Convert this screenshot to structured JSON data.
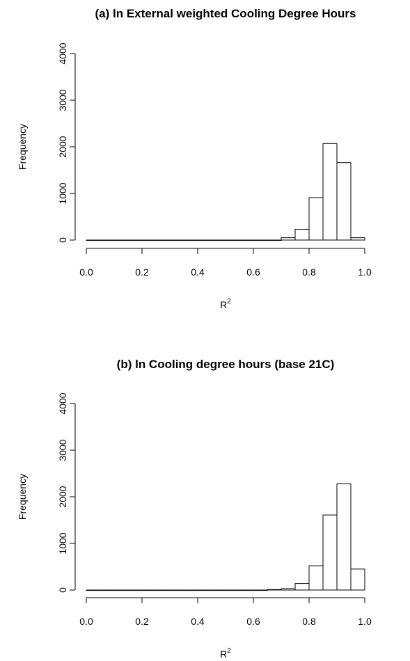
{
  "chart_data": [
    {
      "type": "bar",
      "title": "(a) ln External weighted Cooling Degree Hours",
      "xlabel": "R",
      "xlabel_sup": "2",
      "ylabel": "Frequency",
      "xlim": [
        0.0,
        1.0
      ],
      "ylim": [
        0,
        4000
      ],
      "x_ticks": [
        "0.0",
        "0.2",
        "0.4",
        "0.6",
        "0.8",
        "1.0"
      ],
      "y_ticks": [
        "0",
        "1000",
        "2000",
        "3000",
        "4000"
      ],
      "bin_width": 0.05,
      "bin_starts": [
        0.0,
        0.05,
        0.1,
        0.15,
        0.2,
        0.25,
        0.3,
        0.35,
        0.4,
        0.45,
        0.5,
        0.55,
        0.6,
        0.65,
        0.7,
        0.75,
        0.8,
        0.85,
        0.9,
        0.95
      ],
      "values": [
        0,
        0,
        0,
        0,
        0,
        0,
        0,
        0,
        0,
        0,
        0,
        0,
        0,
        0,
        50,
        230,
        910,
        2070,
        1660,
        50
      ],
      "grid": false
    },
    {
      "type": "bar",
      "title": "(b) ln Cooling degree hours (base 21C)",
      "xlabel": "R",
      "xlabel_sup": "2",
      "ylabel": "Frequency",
      "xlim": [
        0.0,
        1.0
      ],
      "ylim": [
        0,
        4000
      ],
      "x_ticks": [
        "0.0",
        "0.2",
        "0.4",
        "0.6",
        "0.8",
        "1.0"
      ],
      "y_ticks": [
        "0",
        "1000",
        "2000",
        "3000",
        "4000"
      ],
      "bin_width": 0.05,
      "bin_starts": [
        0.0,
        0.05,
        0.1,
        0.15,
        0.2,
        0.25,
        0.3,
        0.35,
        0.4,
        0.45,
        0.5,
        0.55,
        0.6,
        0.65,
        0.7,
        0.75,
        0.8,
        0.85,
        0.9,
        0.95
      ],
      "values": [
        0,
        0,
        0,
        0,
        0,
        0,
        0,
        0,
        0,
        0,
        0,
        0,
        0,
        10,
        30,
        140,
        520,
        1610,
        2280,
        450
      ],
      "grid": false
    }
  ]
}
